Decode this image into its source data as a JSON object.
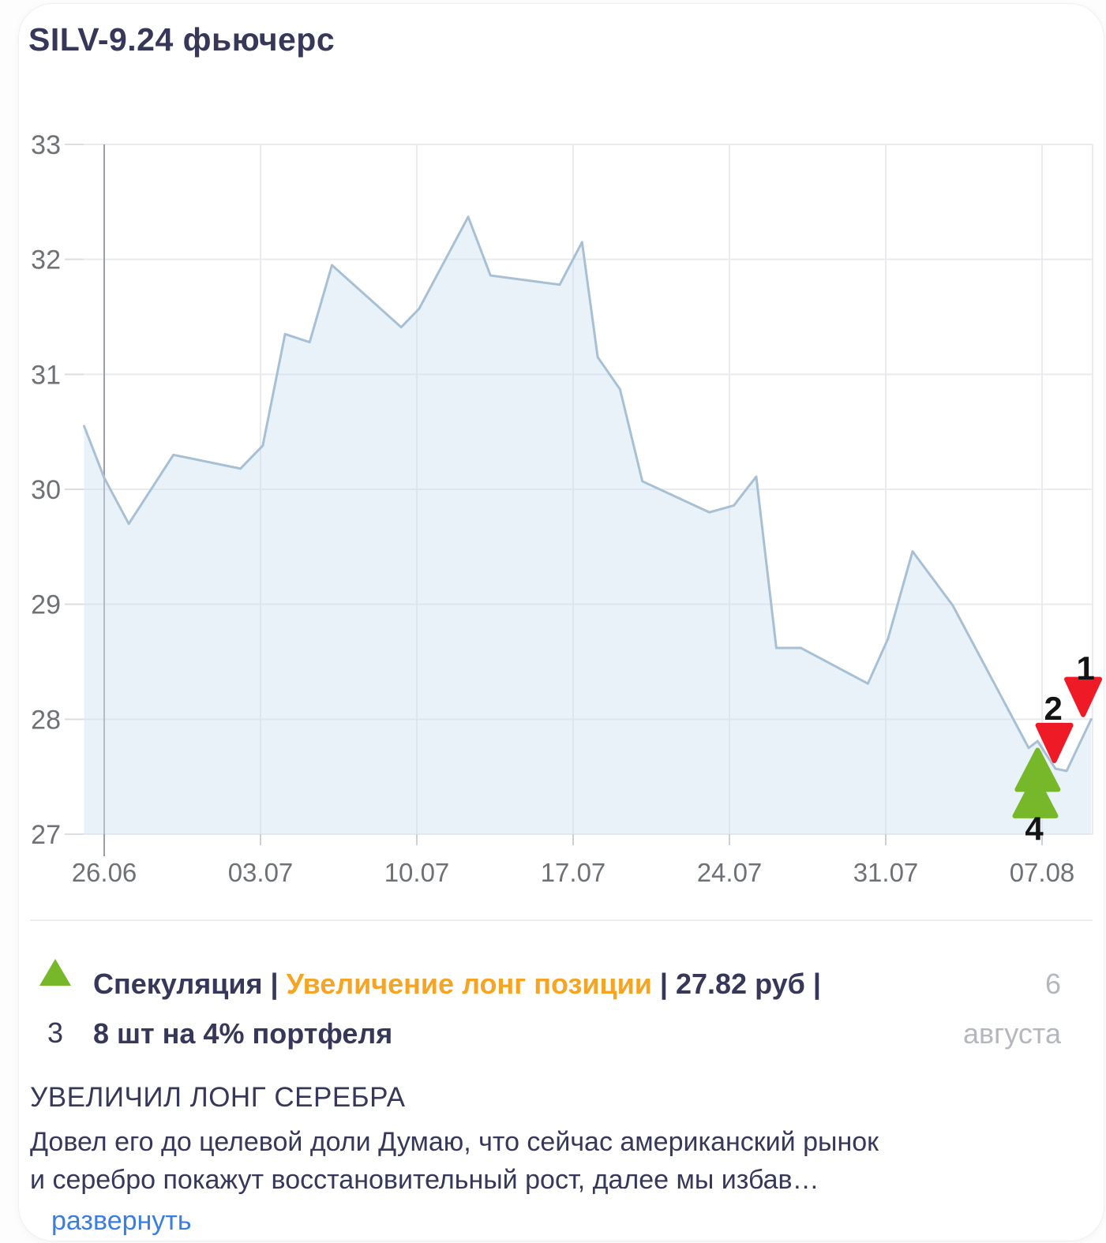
{
  "card": {
    "title": "SILV-9.24 фьючерс"
  },
  "chart_data": {
    "type": "area",
    "title": "SILV-9.24 фьючерс",
    "xlabel": "",
    "ylabel": "",
    "ylim": [
      27,
      33
    ],
    "y_ticks": [
      "33",
      "32",
      "31",
      "30",
      "29",
      "28",
      "27"
    ],
    "x_ticks": [
      "26.06",
      "03.07",
      "10.07",
      "17.07",
      "24.07",
      "31.07",
      "07.08"
    ],
    "grid": true,
    "legend": false,
    "series": [
      {
        "name": "SILV-9.24",
        "x_unit": "days_from_26.06",
        "points": [
          [
            -0.9,
            30.55
          ],
          [
            0,
            30.1
          ],
          [
            1.1,
            29.7
          ],
          [
            3.1,
            30.3
          ],
          [
            6.1,
            30.18
          ],
          [
            7.1,
            30.38
          ],
          [
            8.1,
            31.35
          ],
          [
            9.2,
            31.28
          ],
          [
            10.2,
            31.95
          ],
          [
            13.3,
            31.41
          ],
          [
            14.1,
            31.57
          ],
          [
            16.3,
            32.37
          ],
          [
            17.3,
            31.86
          ],
          [
            20.4,
            31.78
          ],
          [
            21.4,
            32.15
          ],
          [
            22.1,
            31.15
          ],
          [
            23.1,
            30.87
          ],
          [
            24.1,
            30.07
          ],
          [
            27.1,
            29.8
          ],
          [
            28.2,
            29.86
          ],
          [
            29.2,
            30.11
          ],
          [
            30.1,
            28.62
          ],
          [
            31.2,
            28.62
          ],
          [
            34.2,
            28.31
          ],
          [
            35.1,
            28.7
          ],
          [
            36.2,
            29.46
          ],
          [
            38.0,
            28.99
          ],
          [
            41.4,
            27.75
          ],
          [
            41.8,
            27.81
          ],
          [
            42.6,
            27.57
          ],
          [
            43.1,
            27.55
          ],
          [
            44.2,
            28.0
          ]
        ]
      }
    ],
    "markers": [
      {
        "n": "1",
        "side": "sell",
        "d": 43.84,
        "p": 28.19,
        "label_d": 43.95,
        "label_p": 28.45
      },
      {
        "n": "2",
        "side": "sell",
        "d": 42.55,
        "p": 27.79,
        "label_d": 42.5,
        "label_p": 28.1
      },
      {
        "n": "3",
        "side": "buy",
        "d": 41.8,
        "p": 27.56,
        "label_d": 41.75,
        "label_p": 27.27
      },
      {
        "n": "4",
        "side": "buy",
        "d": 41.7,
        "p": 27.33,
        "label_d": 41.65,
        "label_p": 27.05
      }
    ]
  },
  "trade": {
    "marker_number": "3",
    "t1": "Спекуляция |",
    "accent": "Увеличение лонг позиции",
    "t2": "| 27.82 руб |",
    "line2": "8 шт на 4% портфеля",
    "date_day": "6",
    "date_month": "августа"
  },
  "post": {
    "heading": "УВЕЛИЧИЛ ЛОНГ СЕРЕБРА",
    "body_line1": "Довел его до целевой доли Думаю, что сейчас американский рынок",
    "body_line2": "и серебро покажут восстановительный рост, далее мы избав…",
    "expand_link": "развернуть"
  },
  "theme": {
    "navy": "#37375A",
    "orange": "#F5A423",
    "red": "#EE1B26",
    "green": "#77B82B",
    "link": "#3C7EDD",
    "gray_date": "#B4B7BD",
    "axis_text": "#6E7176",
    "grid": "#E9EBEE",
    "grid_dark": "#9BA0A8",
    "tick": "#CDD0D4",
    "stub": "#DADDE1",
    "area_fill": "rgba(207,224,242,0.45)",
    "line": "#A8C0D4",
    "divider": "#EDEDEF",
    "marker_label": "#141414"
  }
}
